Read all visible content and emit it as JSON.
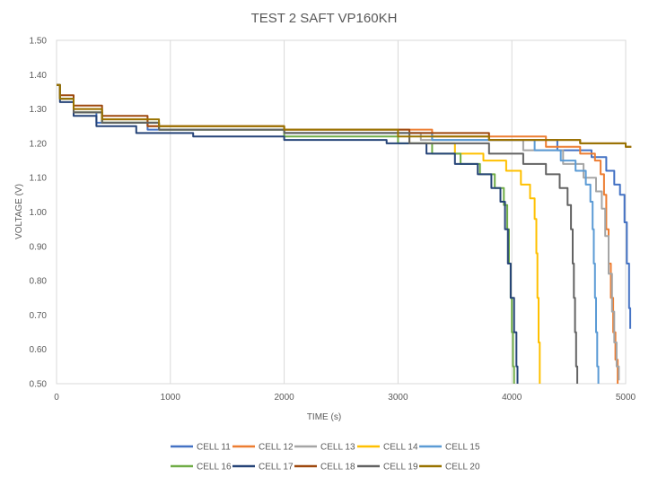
{
  "chart_data": {
    "type": "line",
    "title": "TEST 2 SAFT VP160KH",
    "xlabel": "TIME (s)",
    "ylabel": "VOLTAGE (V)",
    "xlim": [
      0,
      5000
    ],
    "ylim": [
      0.5,
      1.5
    ],
    "x_ticks": [
      "0",
      "1000",
      "2000",
      "3000",
      "4000",
      "5000"
    ],
    "y_ticks": [
      "0.50",
      "0.60",
      "0.70",
      "0.80",
      "0.90",
      "1.00",
      "1.10",
      "1.20",
      "1.30",
      "1.40",
      "1.50"
    ],
    "grid": "vertical",
    "legend_position": "bottom",
    "series": [
      {
        "name": "CELL 11",
        "color": "#4472C4",
        "points": [
          [
            0,
            1.37
          ],
          [
            30,
            1.33
          ],
          [
            150,
            1.29
          ],
          [
            350,
            1.26
          ],
          [
            800,
            1.24
          ],
          [
            2000,
            1.23
          ],
          [
            3300,
            1.21
          ],
          [
            4400,
            1.18
          ],
          [
            4700,
            1.16
          ],
          [
            4830,
            1.12
          ],
          [
            4900,
            1.08
          ],
          [
            4950,
            1.05
          ],
          [
            4990,
            0.97
          ],
          [
            5010,
            0.85
          ],
          [
            5030,
            0.72
          ],
          [
            5040,
            0.66
          ]
        ]
      },
      {
        "name": "CELL 12",
        "color": "#ED7D31",
        "points": [
          [
            0,
            1.37
          ],
          [
            30,
            1.33
          ],
          [
            150,
            1.3
          ],
          [
            400,
            1.27
          ],
          [
            800,
            1.25
          ],
          [
            2000,
            1.24
          ],
          [
            3300,
            1.22
          ],
          [
            4300,
            1.19
          ],
          [
            4600,
            1.17
          ],
          [
            4730,
            1.15
          ],
          [
            4780,
            1.11
          ],
          [
            4810,
            1.05
          ],
          [
            4830,
            0.95
          ],
          [
            4850,
            0.85
          ],
          [
            4870,
            0.75
          ],
          [
            4890,
            0.65
          ],
          [
            4910,
            0.57
          ],
          [
            4930,
            0.5
          ]
        ]
      },
      {
        "name": "CELL 13",
        "color": "#A5A5A5",
        "points": [
          [
            0,
            1.37
          ],
          [
            30,
            1.33
          ],
          [
            150,
            1.29
          ],
          [
            400,
            1.26
          ],
          [
            900,
            1.24
          ],
          [
            2000,
            1.23
          ],
          [
            3200,
            1.21
          ],
          [
            4100,
            1.18
          ],
          [
            4450,
            1.14
          ],
          [
            4630,
            1.1
          ],
          [
            4740,
            1.06
          ],
          [
            4790,
            1.01
          ],
          [
            4820,
            0.93
          ],
          [
            4850,
            0.82
          ],
          [
            4880,
            0.71
          ],
          [
            4900,
            0.62
          ],
          [
            4920,
            0.55
          ],
          [
            4940,
            0.51
          ]
        ]
      },
      {
        "name": "CELL 14",
        "color": "#FFC000",
        "points": [
          [
            0,
            1.37
          ],
          [
            30,
            1.33
          ],
          [
            150,
            1.29
          ],
          [
            400,
            1.26
          ],
          [
            900,
            1.24
          ],
          [
            2000,
            1.23
          ],
          [
            3100,
            1.2
          ],
          [
            3500,
            1.17
          ],
          [
            3750,
            1.15
          ],
          [
            3950,
            1.12
          ],
          [
            4080,
            1.08
          ],
          [
            4160,
            1.04
          ],
          [
            4200,
            0.98
          ],
          [
            4215,
            0.88
          ],
          [
            4225,
            0.75
          ],
          [
            4235,
            0.62
          ],
          [
            4245,
            0.5
          ]
        ]
      },
      {
        "name": "CELL 15",
        "color": "#5B9BD5",
        "points": [
          [
            0,
            1.37
          ],
          [
            30,
            1.33
          ],
          [
            150,
            1.29
          ],
          [
            400,
            1.26
          ],
          [
            900,
            1.24
          ],
          [
            2000,
            1.23
          ],
          [
            3300,
            1.21
          ],
          [
            4200,
            1.18
          ],
          [
            4430,
            1.15
          ],
          [
            4560,
            1.12
          ],
          [
            4650,
            1.08
          ],
          [
            4690,
            1.03
          ],
          [
            4710,
            0.95
          ],
          [
            4720,
            0.85
          ],
          [
            4730,
            0.75
          ],
          [
            4740,
            0.65
          ],
          [
            4750,
            0.55
          ],
          [
            4760,
            0.5
          ]
        ]
      },
      {
        "name": "CELL 16",
        "color": "#70AD47",
        "points": [
          [
            0,
            1.37
          ],
          [
            30,
            1.33
          ],
          [
            150,
            1.29
          ],
          [
            400,
            1.26
          ],
          [
            900,
            1.24
          ],
          [
            2000,
            1.22
          ],
          [
            3000,
            1.2
          ],
          [
            3300,
            1.17
          ],
          [
            3550,
            1.14
          ],
          [
            3720,
            1.11
          ],
          [
            3850,
            1.07
          ],
          [
            3930,
            1.02
          ],
          [
            3960,
            0.95
          ],
          [
            3975,
            0.85
          ],
          [
            3990,
            0.75
          ],
          [
            4000,
            0.65
          ],
          [
            4010,
            0.55
          ],
          [
            4020,
            0.5
          ]
        ]
      },
      {
        "name": "CELL 17",
        "color": "#264478",
        "points": [
          [
            0,
            1.37
          ],
          [
            30,
            1.32
          ],
          [
            150,
            1.28
          ],
          [
            350,
            1.25
          ],
          [
            700,
            1.23
          ],
          [
            1200,
            1.22
          ],
          [
            2000,
            1.21
          ],
          [
            2900,
            1.2
          ],
          [
            3250,
            1.17
          ],
          [
            3500,
            1.14
          ],
          [
            3700,
            1.11
          ],
          [
            3820,
            1.07
          ],
          [
            3900,
            1.03
          ],
          [
            3940,
            0.95
          ],
          [
            3965,
            0.85
          ],
          [
            3990,
            0.75
          ],
          [
            4020,
            0.65
          ],
          [
            4040,
            0.55
          ],
          [
            4050,
            0.5
          ]
        ]
      },
      {
        "name": "CELL 18",
        "color": "#9E480E",
        "points": [
          [
            0,
            1.37
          ],
          [
            30,
            1.34
          ],
          [
            150,
            1.31
          ],
          [
            400,
            1.28
          ],
          [
            800,
            1.25
          ],
          [
            2000,
            1.24
          ],
          [
            3100,
            1.23
          ],
          [
            3800,
            1.21
          ],
          [
            4600,
            1.2
          ],
          [
            5000,
            1.19
          ],
          [
            5050,
            1.19
          ]
        ]
      },
      {
        "name": "CELL 19",
        "color": "#636363",
        "points": [
          [
            0,
            1.37
          ],
          [
            30,
            1.33
          ],
          [
            150,
            1.29
          ],
          [
            400,
            1.26
          ],
          [
            900,
            1.24
          ],
          [
            2000,
            1.23
          ],
          [
            3100,
            1.2
          ],
          [
            3800,
            1.17
          ],
          [
            4100,
            1.14
          ],
          [
            4300,
            1.11
          ],
          [
            4420,
            1.07
          ],
          [
            4490,
            1.02
          ],
          [
            4520,
            0.95
          ],
          [
            4535,
            0.85
          ],
          [
            4545,
            0.75
          ],
          [
            4555,
            0.65
          ],
          [
            4565,
            0.55
          ],
          [
            4575,
            0.5
          ]
        ]
      },
      {
        "name": "CELL 20",
        "color": "#997300",
        "points": [
          [
            0,
            1.37
          ],
          [
            30,
            1.33
          ],
          [
            150,
            1.3
          ],
          [
            400,
            1.27
          ],
          [
            900,
            1.25
          ],
          [
            2000,
            1.24
          ],
          [
            3000,
            1.22
          ],
          [
            3800,
            1.21
          ],
          [
            4600,
            1.2
          ],
          [
            5000,
            1.19
          ],
          [
            5050,
            1.19
          ]
        ]
      }
    ]
  }
}
